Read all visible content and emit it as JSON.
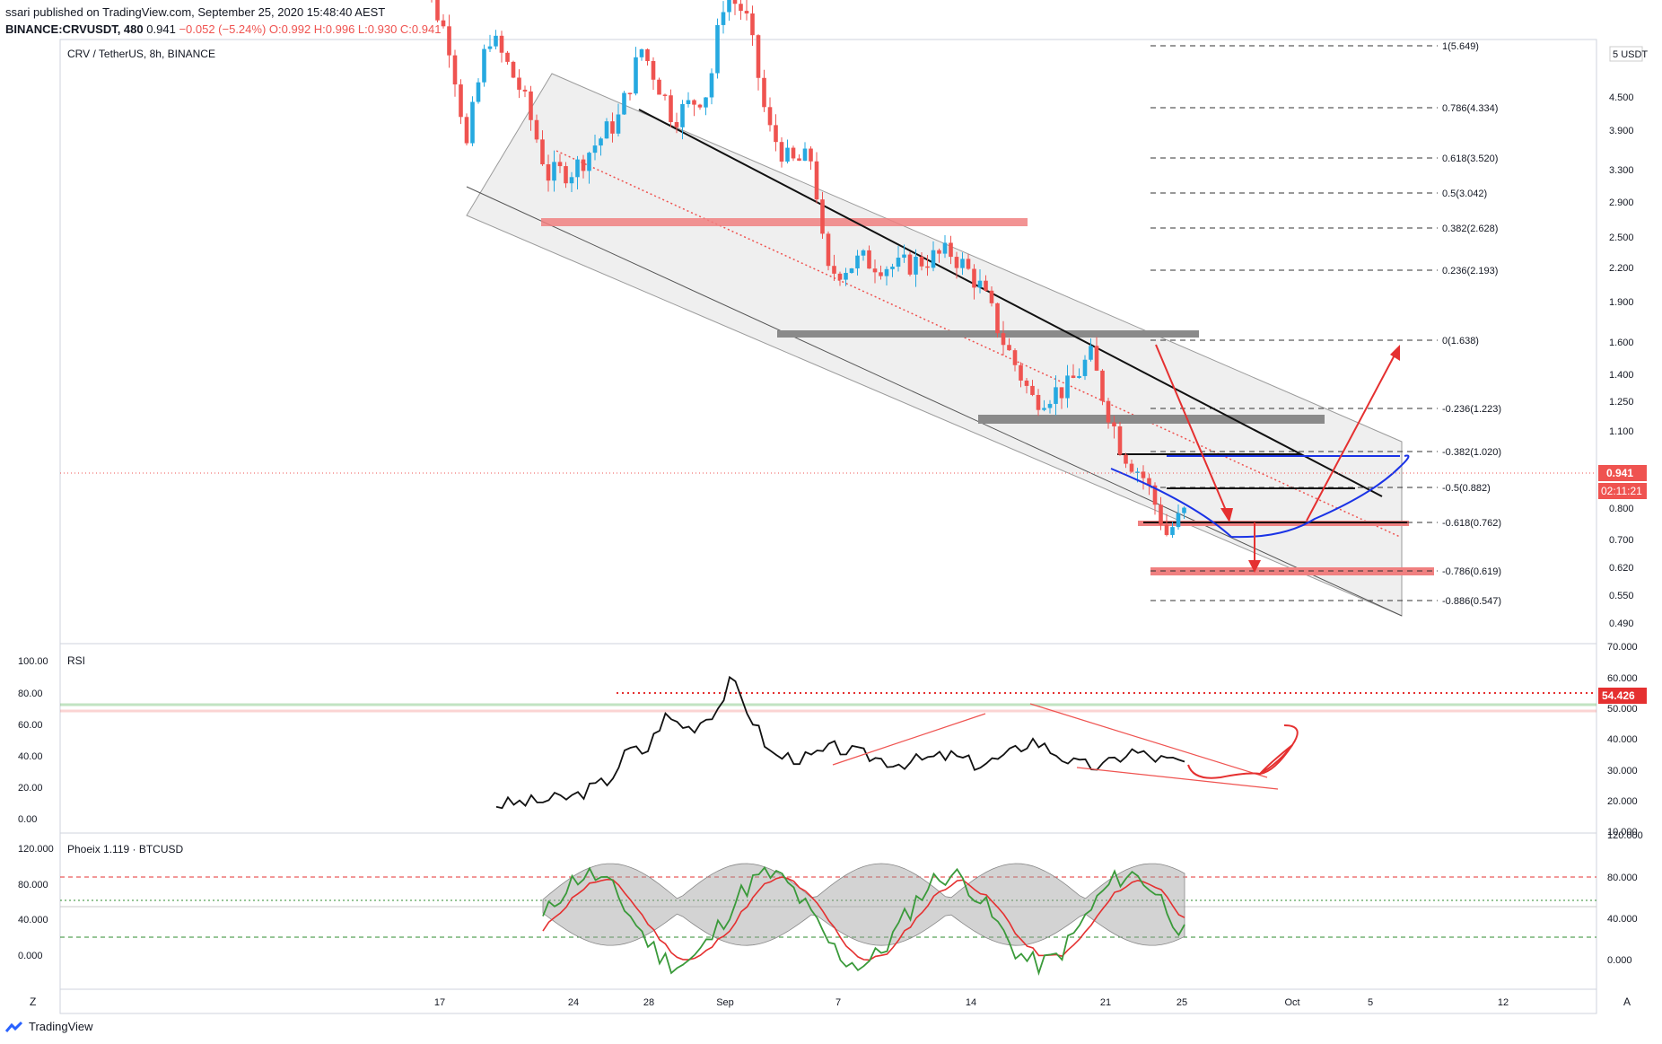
{
  "header": {
    "line1": "ssari published on TradingView.com, September 25, 2020 15:48:40 AEST",
    "symbol": "BINANCE:CRVUSDT, 480",
    "last": "0.941",
    "change": "−0.052 (−5.24%)",
    "ohlc": "O:0.992 H:0.996 L:0.930 C:0.941"
  },
  "main_pane": {
    "title": "CRV / TetherUS, 8h, BINANCE",
    "currency": "USDT",
    "price_label": "0.941",
    "countdown": "02:11:21",
    "price_ticks": [
      "5",
      "4.500",
      "3.900",
      "3.300",
      "2.900",
      "2.500",
      "2.200",
      "1.900",
      "1.600",
      "1.400",
      "1.250",
      "1.100",
      "0.800",
      "0.700",
      "0.620",
      "0.550",
      "0.490"
    ],
    "fib_levels": [
      "1(5.649)",
      "0.786(4.334)",
      "0.618(3.520)",
      "0.5(3.042)",
      "0.382(2.628)",
      "0.236(2.193)",
      "0(1.638)",
      "-0.236(1.223)",
      "-0.382(1.020)",
      "-0.5(0.882)",
      "-0.618(0.762)",
      "-0.786(0.619)",
      "-0.886(0.547)"
    ]
  },
  "rsi_pane": {
    "title": "RSI",
    "left_ticks": [
      "100.00",
      "80.00",
      "60.00",
      "40.00",
      "20.00",
      "0.00"
    ],
    "right_ticks": [
      "70.000",
      "60.000",
      "50.000",
      "40.000",
      "30.000",
      "20.000",
      "10.000"
    ],
    "value_label": "54.426"
  },
  "phoenix_pane": {
    "title": "Phoeix 1.119 · BTCUSD",
    "left_ticks": [
      "120.000",
      "80.000",
      "40.000",
      "0.000"
    ],
    "right_ticks": [
      "120.000",
      "80.000",
      "40.000",
      "0.000"
    ]
  },
  "time_axis": [
    "17",
    "24",
    "28",
    "Sep",
    "7",
    "14",
    "21",
    "25",
    "Oct",
    "5",
    "12"
  ],
  "corner_left": "Z",
  "corner_right": "A",
  "footer": {
    "brand": "TradingView"
  },
  "colors": {
    "up": "#26a9e0",
    "down": "#ef5350",
    "fib": "#131722",
    "channel": "#e5e5e5"
  },
  "chart_data": [
    {
      "type": "line",
      "title": "CRV / TetherUS, 8h, BINANCE",
      "series": [
        {
          "name": "CRV/USDT close",
          "x": [
            "17",
            "24",
            "28",
            "Sep",
            "7",
            "14",
            "21",
            "25"
          ],
          "values": [
            5.6,
            2.75,
            3.3,
            5.0,
            2.3,
            2.0,
            1.55,
            0.941
          ]
        }
      ],
      "ylabel": "USDT"
    },
    {
      "type": "line",
      "title": "RSI",
      "ylim": [
        0,
        100
      ],
      "series": [
        {
          "name": "RSI",
          "values": [
            9,
            12,
            25,
            42,
            48,
            70,
            35,
            37,
            42,
            35,
            45,
            38,
            31,
            37
          ]
        }
      ]
    }
  ]
}
